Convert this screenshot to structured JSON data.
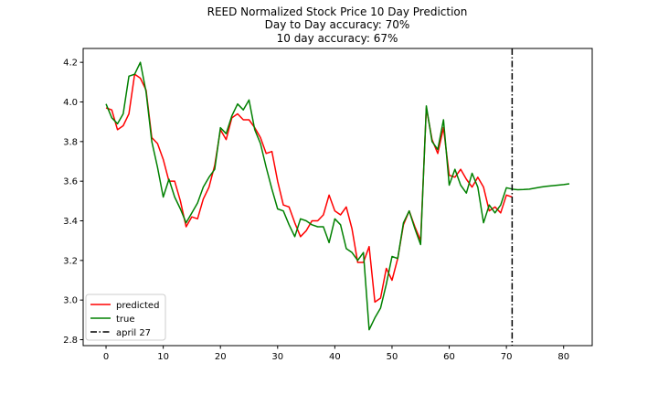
{
  "chart_data": {
    "type": "line",
    "title_lines": [
      "REED Normalized Stock Price 10 Day Prediction",
      "Day to Day accuracy: 70%",
      "10 day accuracy: 67%"
    ],
    "xlabel": "",
    "ylabel": "",
    "xlim": [
      -4,
      85
    ],
    "ylim": [
      2.77,
      4.27
    ],
    "x_ticks": [
      0,
      10,
      20,
      30,
      40,
      50,
      60,
      70,
      80
    ],
    "x_tick_labels": [
      "0",
      "10",
      "20",
      "30",
      "40",
      "50",
      "60",
      "70",
      "80"
    ],
    "y_ticks": [
      2.8,
      3.0,
      3.2,
      3.4,
      3.6,
      3.8,
      4.0,
      4.2
    ],
    "y_tick_labels": [
      "2.8",
      "3.0",
      "3.2",
      "3.4",
      "3.6",
      "3.8",
      "4.0",
      "4.2"
    ],
    "grid": false,
    "legend_position": "lower-left",
    "series": [
      {
        "name": "predicted",
        "color": "#ff0000",
        "style": "solid",
        "x": [
          0,
          1,
          2,
          3,
          4,
          5,
          6,
          7,
          8,
          9,
          10,
          11,
          12,
          13,
          14,
          15,
          16,
          17,
          18,
          19,
          20,
          21,
          22,
          23,
          24,
          25,
          26,
          27,
          28,
          29,
          30,
          31,
          32,
          33,
          34,
          35,
          36,
          37,
          38,
          39,
          40,
          41,
          42,
          43,
          44,
          45,
          46,
          47,
          48,
          49,
          50,
          51,
          52,
          53,
          54,
          55,
          56,
          57,
          58,
          59,
          60,
          61,
          62,
          63,
          64,
          65,
          66,
          67,
          68,
          69,
          70,
          71
        ],
        "values": [
          3.97,
          3.96,
          3.86,
          3.88,
          3.94,
          4.14,
          4.12,
          4.06,
          3.82,
          3.79,
          3.71,
          3.6,
          3.6,
          3.5,
          3.37,
          3.42,
          3.41,
          3.51,
          3.57,
          3.68,
          3.86,
          3.81,
          3.92,
          3.94,
          3.91,
          3.91,
          3.87,
          3.82,
          3.74,
          3.75,
          3.6,
          3.48,
          3.47,
          3.39,
          3.32,
          3.35,
          3.4,
          3.4,
          3.43,
          3.53,
          3.45,
          3.43,
          3.47,
          3.36,
          3.19,
          3.19,
          3.27,
          2.99,
          3.01,
          3.16,
          3.1,
          3.21,
          3.38,
          3.45,
          3.37,
          3.3,
          3.97,
          3.81,
          3.74,
          3.87,
          3.63,
          3.62,
          3.66,
          3.61,
          3.57,
          3.62,
          3.57,
          3.45,
          3.47,
          3.44,
          3.53,
          3.52
        ]
      },
      {
        "name": "true",
        "color": "#008000",
        "style": "solid",
        "x": [
          0,
          1,
          2,
          3,
          4,
          5,
          6,
          7,
          8,
          9,
          10,
          11,
          12,
          13,
          14,
          15,
          16,
          17,
          18,
          19,
          20,
          21,
          22,
          23,
          24,
          25,
          26,
          27,
          28,
          29,
          30,
          31,
          32,
          33,
          34,
          35,
          36,
          37,
          38,
          39,
          40,
          41,
          42,
          43,
          44,
          45,
          46,
          47,
          48,
          49,
          50,
          51,
          52,
          53,
          54,
          55,
          56,
          57,
          58,
          59,
          60,
          61,
          62,
          63,
          64,
          65,
          66,
          67,
          68,
          69,
          70,
          71,
          72,
          73,
          74,
          75,
          76,
          77,
          78,
          79,
          80,
          81
        ],
        "values": [
          3.99,
          3.92,
          3.89,
          3.94,
          4.13,
          4.14,
          4.2,
          4.05,
          3.8,
          3.67,
          3.52,
          3.61,
          3.52,
          3.46,
          3.39,
          3.44,
          3.49,
          3.57,
          3.62,
          3.66,
          3.87,
          3.84,
          3.93,
          3.99,
          3.96,
          4.01,
          3.86,
          3.79,
          3.67,
          3.56,
          3.46,
          3.45,
          3.38,
          3.32,
          3.41,
          3.4,
          3.38,
          3.37,
          3.37,
          3.29,
          3.41,
          3.38,
          3.26,
          3.24,
          3.2,
          3.24,
          2.85,
          2.91,
          2.96,
          3.08,
          3.22,
          3.21,
          3.39,
          3.45,
          3.36,
          3.28,
          3.98,
          3.8,
          3.76,
          3.91,
          3.58,
          3.66,
          3.58,
          3.54,
          3.64,
          3.57,
          3.39,
          3.48,
          3.44,
          3.48,
          3.567,
          3.56,
          3.557,
          3.558,
          3.56,
          3.565,
          3.57,
          3.574,
          3.577,
          3.58,
          3.583,
          3.587
        ]
      }
    ],
    "vline": {
      "name": "april 27",
      "x": 71,
      "color": "#000000",
      "style": "dashdot"
    }
  }
}
